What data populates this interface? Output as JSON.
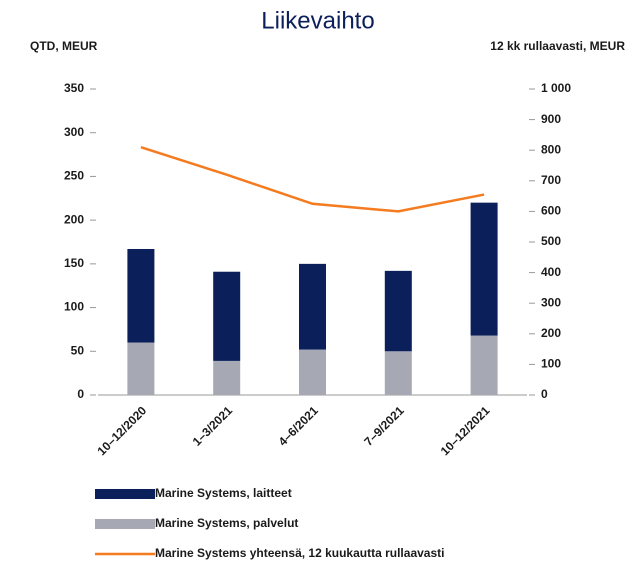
{
  "chart_data": {
    "type": "bar",
    "stacked": true,
    "title": "Liikevaihto",
    "y_label": "QTD, MEUR",
    "y2_label": "12 kk rullaavasti, MEUR",
    "categories": [
      "10–12/2020",
      "1–3/2021",
      "4–6/2021",
      "7–9/2021",
      "10–12/2021"
    ],
    "series": [
      {
        "name": "Marine Systems, laitteet",
        "color": "#0b1f5b",
        "values": [
          107,
          102,
          98,
          92,
          152
        ]
      },
      {
        "name": "Marine Systems, palvelut",
        "color": "#a6a8b3",
        "values": [
          60,
          39,
          52,
          50,
          68
        ]
      },
      {
        "name": "Marine Systems yhteensä, 12 kuukautta rullaavasti",
        "color": "#f47b20",
        "type": "line",
        "axis": "y2",
        "values": [
          810,
          720,
          625,
          600,
          655
        ]
      }
    ],
    "ylim": [
      0,
      350
    ],
    "yticks": [
      0,
      50,
      100,
      150,
      200,
      250,
      300,
      350
    ],
    "y2lim": [
      0,
      1000
    ],
    "y2ticks": [
      0,
      100,
      200,
      300,
      400,
      500,
      600,
      700,
      800,
      900,
      {
        "value": 1000,
        "label": "1 000"
      }
    ],
    "grid": false
  }
}
